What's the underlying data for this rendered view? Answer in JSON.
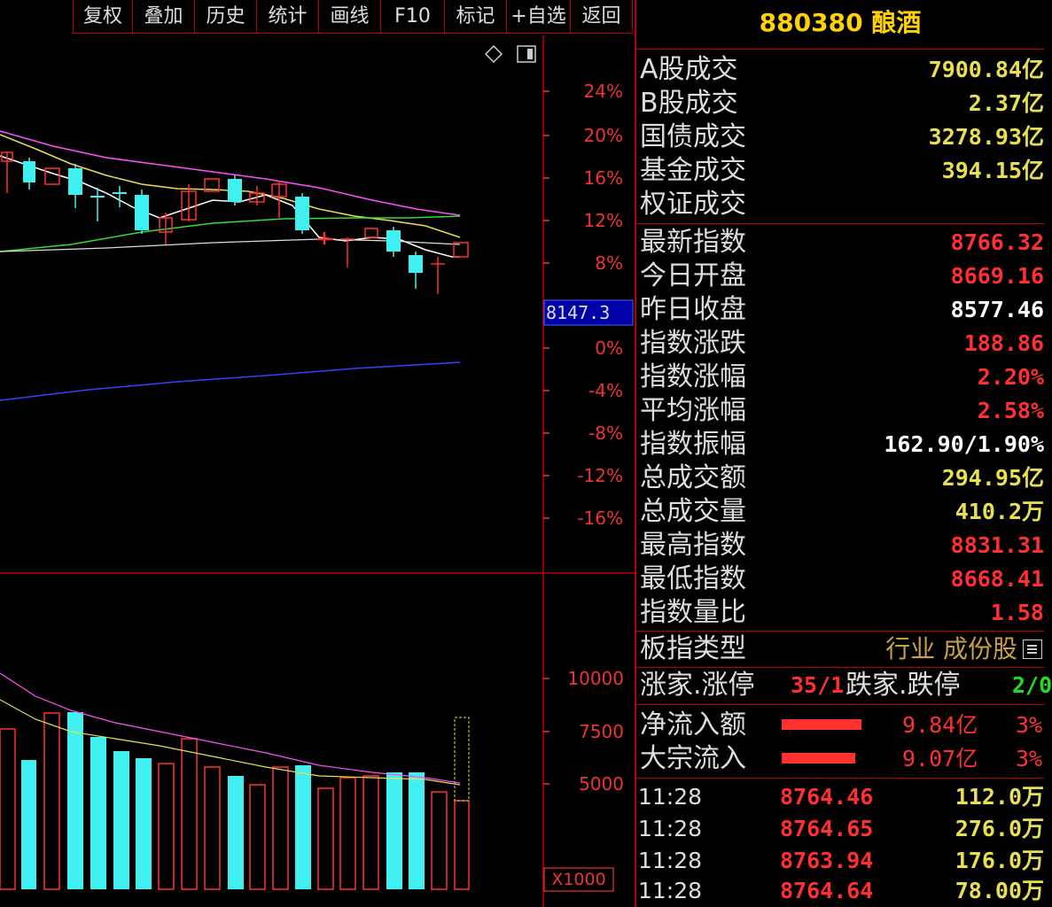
{
  "toolbar": {
    "items": [
      "复权",
      "叠加",
      "历史",
      "统计",
      "画线",
      "F10",
      "标记",
      "+自选",
      "返回"
    ]
  },
  "chart": {
    "pct_axis": [
      "24%",
      "20%",
      "16%",
      "12%",
      "8%",
      "0%",
      "-4%",
      "-8%",
      "-12%",
      "-16%"
    ],
    "current_price_label": "8147.3",
    "volume_axis": [
      "10000",
      "7500",
      "5000"
    ],
    "volume_unit": "X1000",
    "colors": {
      "up": "#ff3030",
      "down": "#40f0f0",
      "ma5": "#ffffff",
      "ma10": "#e8e050",
      "ma20": "#ff50ff",
      "ma60": "#33dd33",
      "ma250": "#3344ff"
    }
  },
  "panel": {
    "title": "880380 酿酒",
    "market_rows": [
      {
        "label": "A股成交",
        "value": "7900.84亿"
      },
      {
        "label": "B股成交",
        "value": "2.37亿"
      },
      {
        "label": "国债成交",
        "value": "3278.93亿"
      },
      {
        "label": "基金成交",
        "value": "394.15亿"
      },
      {
        "label": "权证成交",
        "value": ""
      }
    ],
    "index_rows": [
      {
        "label": "最新指数",
        "value": "8766.32",
        "color": "red"
      },
      {
        "label": "今日开盘",
        "value": "8669.16",
        "color": "red"
      },
      {
        "label": "昨日收盘",
        "value": "8577.46",
        "color": "white"
      },
      {
        "label": "指数涨跌",
        "value": "188.86",
        "color": "red"
      },
      {
        "label": "指数涨幅",
        "value": "2.20%",
        "color": "red"
      },
      {
        "label": "平均涨幅",
        "value": "2.58%",
        "color": "red"
      },
      {
        "label": "指数振幅",
        "value": "162.90/1.90%",
        "color": "white"
      },
      {
        "label": "总成交额",
        "value": "294.95亿",
        "color": "yellow"
      },
      {
        "label": "总成交量",
        "value": "410.2万",
        "color": "yellow"
      },
      {
        "label": "最高指数",
        "value": "8831.31",
        "color": "red"
      },
      {
        "label": "最低指数",
        "value": "8668.41",
        "color": "red"
      },
      {
        "label": "指数量比",
        "value": "1.58",
        "color": "red"
      }
    ],
    "type_label": "板指类型",
    "type_value": "行业 成份股",
    "rise_label": "涨家.涨停",
    "rise_value": "35/1",
    "fall_label": "跌家.跌停",
    "fall_value": "2/0",
    "inflow": {
      "label": "净流入额",
      "amount": "9.84亿",
      "pct": "3%",
      "bar": 0.9
    },
    "block": {
      "label": "大宗流入",
      "amount": "9.07亿",
      "pct": "3%",
      "bar": 0.83
    },
    "ticks": [
      {
        "time": "11:28",
        "price": "8764.46",
        "vol": "112.0万"
      },
      {
        "time": "11:28",
        "price": "8764.65",
        "vol": "276.0万"
      },
      {
        "time": "11:28",
        "price": "8763.94",
        "vol": "176.0万"
      },
      {
        "time": "11:28",
        "price": "8764.64",
        "vol": "78.00万"
      }
    ]
  }
}
